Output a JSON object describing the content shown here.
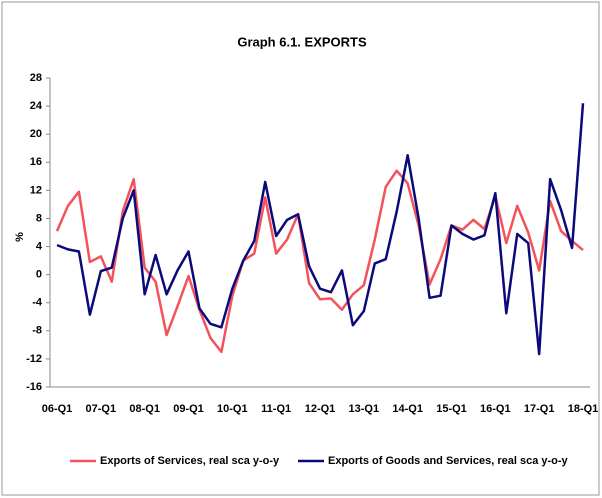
{
  "chart_data": {
    "type": "line",
    "title": "Graph 6.1. EXPORTS",
    "y_label": "%",
    "categories": [
      "06-Q1",
      null,
      null,
      null,
      "07-Q1",
      null,
      null,
      null,
      "08-Q1",
      null,
      null,
      null,
      "09-Q1",
      null,
      null,
      null,
      "10-Q1",
      null,
      null,
      null,
      "11-Q1",
      null,
      null,
      null,
      "12-Q1",
      null,
      null,
      null,
      "13-Q1",
      null,
      null,
      null,
      "14-Q1",
      null,
      null,
      null,
      "15-Q1",
      null,
      null,
      null,
      "16-Q1",
      null,
      null,
      null,
      "17-Q1",
      null,
      null,
      null,
      "18-Q1"
    ],
    "series": [
      {
        "name": "Exports of Services, real sca y-o-y",
        "color": "#f4525a",
        "values": [
          6.2,
          9.8,
          11.8,
          1.8,
          2.6,
          -1,
          9,
          13.6,
          1,
          -1,
          -8.6,
          -4.5,
          -0.2,
          -5,
          -9,
          -11,
          -3,
          2,
          3,
          11,
          3,
          5,
          8.6,
          -1.2,
          -3.5,
          -3.4,
          -5,
          -2.8,
          -1.5,
          5,
          12.5,
          14.8,
          13,
          7,
          -1.4,
          2.2,
          7,
          6.4,
          7.8,
          6.5,
          11.2,
          4.5,
          9.8,
          6,
          0.6,
          10.5,
          6.2,
          4.8,
          3.5
        ]
      },
      {
        "name": "Exports of Goods and Services, real sca y-o-y",
        "color": "#0a0a7a",
        "values": [
          4.2,
          3.6,
          3.3,
          -5.7,
          0.5,
          1,
          8,
          12,
          -2.8,
          2.8,
          -2.8,
          0.6,
          3.3,
          -4.8,
          -7,
          -7.5,
          -2,
          2,
          4.8,
          13.2,
          5.5,
          7.8,
          8.6,
          1.2,
          -2,
          -2.5,
          0.6,
          -7.2,
          -5.2,
          1.6,
          2.2,
          9,
          17,
          8,
          -3.3,
          -3,
          7,
          5.8,
          5,
          5.6,
          11.6,
          -5.5,
          5.8,
          4.5,
          -11.3,
          13.6,
          9.2,
          3.8,
          24.4
        ]
      }
    ],
    "ylim": [
      -16,
      28
    ],
    "yticks": [
      -16,
      -12,
      -8,
      -4,
      0,
      4,
      8,
      12,
      16,
      20,
      24,
      28
    ],
    "grid": false,
    "legend": "bottom"
  }
}
